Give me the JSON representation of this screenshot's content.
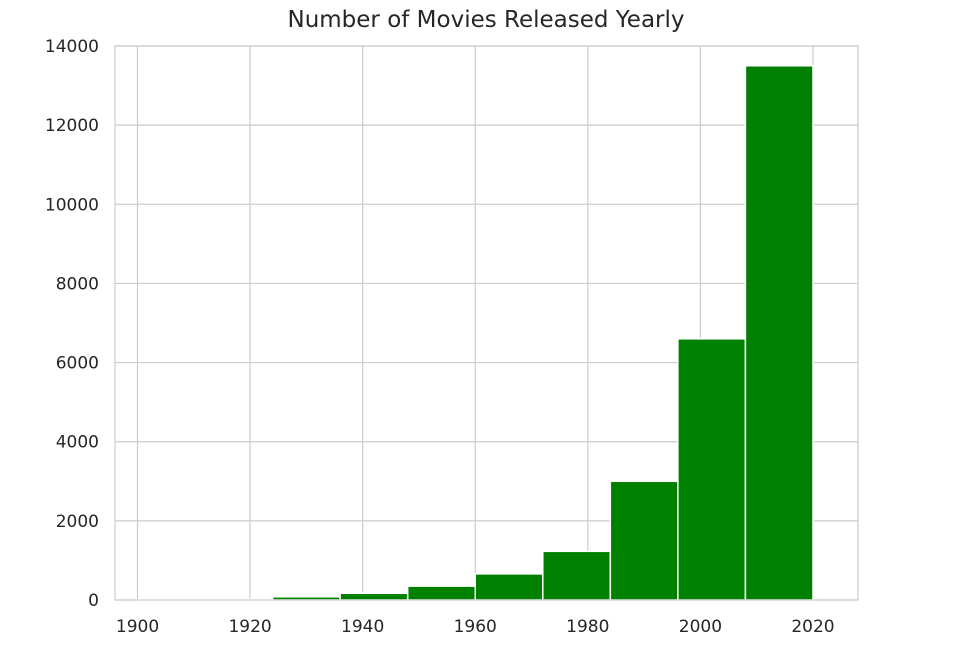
{
  "chart_data": {
    "type": "bar",
    "title": "Number of Movies Released Yearly",
    "xlabel": "",
    "ylabel": "",
    "xlim": [
      1896,
      2028
    ],
    "ylim": [
      0,
      14000
    ],
    "x_ticks": [
      "1900",
      "1920",
      "1940",
      "1960",
      "1980",
      "2000",
      "2020"
    ],
    "y_ticks": [
      "0",
      "2000",
      "4000",
      "6000",
      "8000",
      "10000",
      "12000",
      "14000"
    ],
    "bin_edges": [
      1900,
      1912,
      1924,
      1936,
      1948,
      1960,
      1972,
      1984,
      1996,
      2008,
      2020
    ],
    "values": [
      5,
      10,
      80,
      170,
      350,
      660,
      1230,
      3000,
      6600,
      13500
    ],
    "grid": true,
    "colors": {
      "bar": "#008000",
      "bar_edge": "#ffffff",
      "grid": "#cccccc",
      "text": "#262626"
    }
  }
}
